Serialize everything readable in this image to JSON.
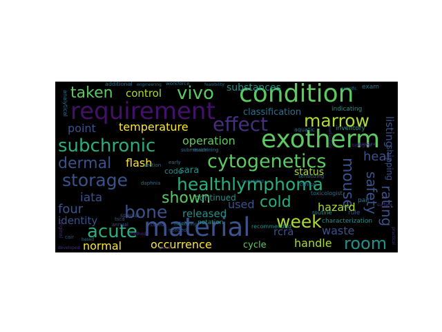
{
  "palette": {
    "purple": "#44106a",
    "violet": "#472f7d",
    "indigo": "#3b528b",
    "blue": "#2c728e",
    "teal": "#21918c",
    "sea": "#28ae80",
    "green": "#5ec962",
    "lime": "#addc30",
    "yellow": "#fde725"
  },
  "words": [
    {
      "text": "requirement",
      "color": "#44106a"
    },
    {
      "text": "condition",
      "color": "#5ec962"
    },
    {
      "text": "material",
      "color": "#3b528b"
    },
    {
      "text": "exotherm",
      "color": "#5ec962"
    },
    {
      "text": "effect",
      "color": "#472f7d"
    },
    {
      "text": "cytogenetics",
      "color": "#5ec962"
    },
    {
      "text": "healthlymphoma",
      "color": "#28ae80"
    },
    {
      "text": "marrow",
      "color": "#addc30"
    },
    {
      "text": "subchronic",
      "color": "#28ae80"
    },
    {
      "text": "storage",
      "color": "#3b528b"
    },
    {
      "text": "dermal",
      "color": "#3b528b"
    },
    {
      "text": "taken",
      "color": "#5ec962"
    },
    {
      "text": "vivo",
      "color": "#5ec962"
    },
    {
      "text": "bone",
      "color": "#3b528b"
    },
    {
      "text": "acute",
      "color": "#28ae80"
    },
    {
      "text": "week",
      "color": "#addc30"
    },
    {
      "text": "room",
      "color": "#21918c"
    },
    {
      "text": "shown",
      "color": "#5ec962"
    },
    {
      "text": "cold",
      "color": "#28ae80"
    },
    {
      "text": "mouse",
      "color": "#3b528b"
    },
    {
      "text": "rating",
      "color": "#3b528b"
    },
    {
      "text": "safety",
      "color": "#3b528b"
    },
    {
      "text": "heat",
      "color": "#3b528b"
    },
    {
      "text": "temperature",
      "color": "#fde725"
    },
    {
      "text": "point",
      "color": "#3b528b"
    },
    {
      "text": "control",
      "color": "#addc30"
    },
    {
      "text": "substances",
      "color": "#21918c"
    },
    {
      "text": "classification",
      "color": "#2c728e"
    },
    {
      "text": "operation",
      "color": "#5ec962"
    },
    {
      "text": "flash",
      "color": "#fde725"
    },
    {
      "text": "iata",
      "color": "#3b528b"
    },
    {
      "text": "four",
      "color": "#3b528b"
    },
    {
      "text": "identity",
      "color": "#3b528b"
    },
    {
      "text": "normal",
      "color": "#fde725"
    },
    {
      "text": "occurrence",
      "color": "#fde725"
    },
    {
      "text": "released",
      "color": "#21918c"
    },
    {
      "text": "used",
      "color": "#3b528b"
    },
    {
      "text": "hazard",
      "color": "#addc30"
    },
    {
      "text": "waste",
      "color": "#3b528b"
    },
    {
      "text": "handle",
      "color": "#addc30"
    },
    {
      "text": "rcra",
      "color": "#3b528b"
    },
    {
      "text": "cycle",
      "color": "#5ec962"
    },
    {
      "text": "status",
      "color": "#addc30"
    },
    {
      "text": "sara",
      "color": "#21918c"
    },
    {
      "text": "continued",
      "color": "#21918c"
    },
    {
      "text": "listing",
      "color": "#3b528b"
    },
    {
      "text": "shipping",
      "color": "#3b528b"
    },
    {
      "text": "code",
      "color": "#21918c"
    },
    {
      "text": "characterization",
      "color": "#21918c"
    },
    {
      "text": "indicating",
      "color": "#21918c"
    },
    {
      "text": "inventory",
      "color": "#21918c"
    },
    {
      "text": "aquatic",
      "color": "#2c728e"
    },
    {
      "text": "toxicologist",
      "color": "#2c728e"
    },
    {
      "text": "routine",
      "color": "#21918c"
    },
    {
      "text": "recommended",
      "color": "#21918c"
    },
    {
      "text": "notation",
      "color": "#21918c"
    },
    {
      "text": "rule",
      "color": "#3b528b"
    },
    {
      "text": "exam",
      "color": "#2c728e"
    },
    {
      "text": "pair",
      "color": "#2c728e"
    },
    {
      "text": "special",
      "color": "#3b528b"
    },
    {
      "text": "annual",
      "color": "#3b528b"
    },
    {
      "text": "cured",
      "color": "#3b528b"
    },
    {
      "text": "needed",
      "color": "#3b528b"
    },
    {
      "text": "stel",
      "color": "#3b528b"
    },
    {
      "text": "tsca",
      "color": "#3b528b"
    },
    {
      "text": "cair",
      "color": "#3b528b"
    },
    {
      "text": "analytical",
      "color": "#2c728e"
    },
    {
      "text": "additional",
      "color": "#2c728e"
    },
    {
      "text": "submission",
      "color": "#2c728e"
    },
    {
      "text": "section",
      "color": "#2c728e"
    },
    {
      "text": "early",
      "color": "#2c728e"
    },
    {
      "text": "daphnia",
      "color": "#2c728e"
    },
    {
      "text": "workforce",
      "color": "#2c728e"
    },
    {
      "text": "machining",
      "color": "#2c728e"
    },
    {
      "text": "sensitizing",
      "color": "#2c728e"
    },
    {
      "text": "clinical",
      "color": "#2c728e"
    },
    {
      "text": "completed",
      "color": "#2c728e"
    },
    {
      "text": "original",
      "color": "#472f7d"
    },
    {
      "text": "particulate",
      "color": "#472f7d"
    },
    {
      "text": "specific",
      "color": "#2c728e"
    },
    {
      "text": "monitoring",
      "color": "#2c728e"
    },
    {
      "text": "engineering",
      "color": "#2c728e"
    },
    {
      "text": "feasibility",
      "color": "#2c728e"
    },
    {
      "text": "based",
      "color": "#2c728e"
    },
    {
      "text": "practical",
      "color": "#472f7d"
    },
    {
      "text": "developed",
      "color": "#472f7d"
    },
    {
      "text": "method",
      "color": "#472f7d"
    },
    {
      "text": "biological",
      "color": "#472f7d"
    },
    {
      "text": "surface",
      "color": "#472f7d"
    },
    {
      "text": "gloves",
      "color": "#472f7d"
    },
    {
      "text": "pressure",
      "color": "#472f7d"
    }
  ]
}
